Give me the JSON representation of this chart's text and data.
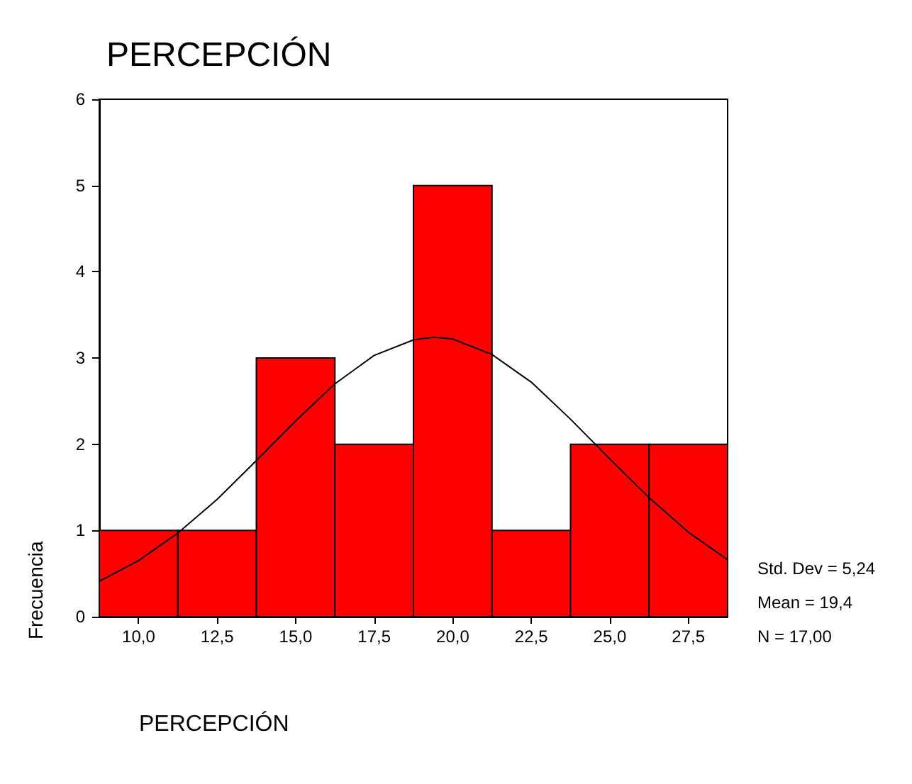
{
  "chart_data": {
    "type": "histogram",
    "title": "PERCEPCIÓN",
    "xlabel": "PERCEPCIÓN",
    "ylabel": "Frecuencia",
    "bins": [
      8.75,
      11.25,
      13.75,
      16.25,
      18.75,
      21.25,
      23.75,
      26.25,
      28.75
    ],
    "series": [
      {
        "color": "#ff0000",
        "values": [
          1,
          1,
          3,
          2,
          5,
          1,
          2,
          2
        ]
      },
      {
        "type": "line",
        "color": "#000000",
        "x": [
          8.75,
          10,
          11.25,
          12.5,
          13.75,
          15,
          16.25,
          17.5,
          18.75,
          19.4,
          20,
          21.25,
          22.5,
          23.75,
          25,
          26.25,
          27.5,
          28.75
        ],
        "values": [
          0.41,
          0.65,
          0.97,
          1.36,
          1.81,
          2.27,
          2.7,
          3.03,
          3.21,
          3.24,
          3.22,
          3.04,
          2.72,
          2.29,
          1.83,
          1.38,
          0.98,
          0.66
        ]
      }
    ],
    "xlim": [
      8.75,
      28.75
    ],
    "xticks": [
      {
        "value": 10,
        "label": "10,0"
      },
      {
        "value": 12.5,
        "label": "12,5"
      },
      {
        "value": 15,
        "label": "15,0"
      },
      {
        "value": 17.5,
        "label": "17,5"
      },
      {
        "value": 20,
        "label": "20,0"
      },
      {
        "value": 22.5,
        "label": "22,5"
      },
      {
        "value": 25,
        "label": "25,0"
      },
      {
        "value": 27.5,
        "label": "27,5"
      }
    ],
    "ylim": [
      0,
      6
    ],
    "yticks": [
      0,
      1,
      2,
      3,
      4,
      5,
      6
    ],
    "annotations": [
      "Std. Dev = 5,24",
      "Mean = 19,4",
      "N = 17,00"
    ],
    "grid": false,
    "marker": "none",
    "line_style": "solid"
  }
}
